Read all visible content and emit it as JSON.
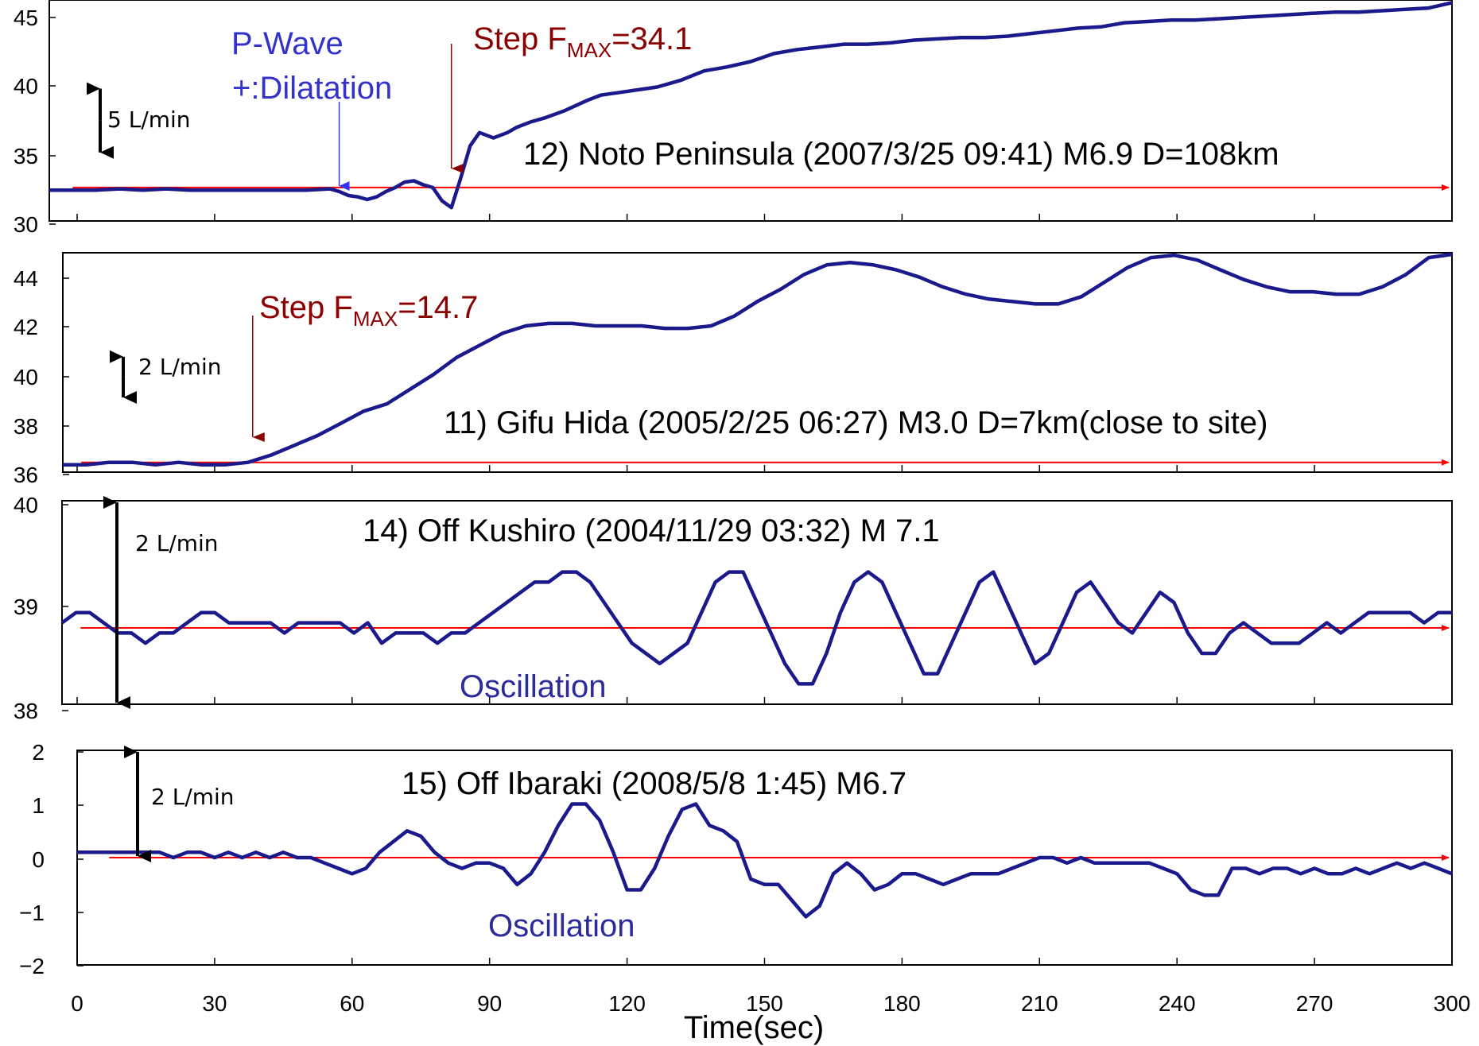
{
  "colors": {
    "trace": "#1a1a8c",
    "baseline": "#ff0000",
    "step": "#8b0000",
    "pwave": "#3333cc",
    "scale_arrow": "#000000",
    "oscillation": "#2b2b9c"
  },
  "x_axis": {
    "label": "Time(sec)",
    "ticks": [
      "0",
      "30",
      "60",
      "90",
      "120",
      "150",
      "180",
      "210",
      "240",
      "270",
      "300"
    ]
  },
  "chart_data": [
    {
      "type": "line",
      "title": "12) Noto Peninsula (2007/3/25 09:41) M6.9 D=108km",
      "y_ticks": [
        "30",
        "35",
        "40",
        "45"
      ],
      "ylim": [
        30,
        46.5
      ],
      "xlim": [
        0,
        300
      ],
      "baseline": 32.5,
      "scale_label": "5 L/min",
      "scale_range": [
        35,
        40
      ],
      "annotations": {
        "pwave_line1": "P-Wave",
        "pwave_line2": "+:Dilatation",
        "pwave_x": 62,
        "step_prefix": "Step F",
        "step_sub": "MAX",
        "step_value": "=34.1",
        "step_x": 86
      },
      "series": [
        {
          "x": [
            0,
            5,
            10,
            15,
            20,
            25,
            30,
            35,
            40,
            45,
            50,
            55,
            60,
            62,
            64,
            66,
            68,
            70,
            72,
            74,
            76,
            78,
            80,
            82,
            84,
            86,
            88,
            90,
            92,
            95,
            98,
            100,
            103,
            106,
            110,
            115,
            118,
            122,
            126,
            130,
            135,
            140,
            145,
            150,
            155,
            160,
            165,
            170,
            175,
            180,
            185,
            190,
            195,
            200,
            205,
            210,
            215,
            220,
            225,
            230,
            235,
            240,
            245,
            250,
            255,
            260,
            265,
            270,
            275,
            280,
            285,
            290,
            295,
            300
          ],
          "values": [
            32.3,
            32.3,
            32.3,
            32.4,
            32.3,
            32.4,
            32.3,
            32.3,
            32.3,
            32.3,
            32.3,
            32.3,
            32.4,
            32.2,
            31.9,
            31.8,
            31.6,
            31.8,
            32.2,
            32.5,
            32.9,
            33.0,
            32.7,
            32.5,
            31.5,
            31.0,
            33.2,
            35.6,
            36.6,
            36.2,
            36.6,
            37.0,
            37.4,
            37.7,
            38.2,
            39.0,
            39.4,
            39.6,
            39.8,
            40.0,
            40.5,
            41.2,
            41.5,
            41.9,
            42.5,
            42.8,
            43.0,
            43.2,
            43.2,
            43.3,
            43.5,
            43.6,
            43.7,
            43.7,
            43.8,
            44.0,
            44.2,
            44.4,
            44.5,
            44.8,
            44.9,
            45.0,
            45.0,
            45.1,
            45.2,
            45.3,
            45.4,
            45.5,
            45.6,
            45.6,
            45.7,
            45.8,
            45.9,
            46.3
          ]
        }
      ]
    },
    {
      "type": "line",
      "title": "11) Gifu Hida (2005/2/25 06:27) M3.0  D=7km(close to site)",
      "y_ticks": [
        "36",
        "38",
        "40",
        "42",
        "44"
      ],
      "ylim": [
        36,
        45
      ],
      "xlim": [
        0,
        300
      ],
      "baseline": 36.4,
      "scale_label": "2 L/min",
      "scale_range": [
        39.0,
        40.8
      ],
      "annotations": {
        "step_prefix": "Step F",
        "step_sub": "MAX",
        "step_value": "=14.7",
        "step_x": 41
      },
      "series": [
        {
          "x": [
            0,
            5,
            10,
            15,
            20,
            25,
            30,
            35,
            40,
            45,
            50,
            55,
            60,
            65,
            70,
            75,
            80,
            85,
            90,
            95,
            100,
            105,
            110,
            115,
            120,
            125,
            130,
            135,
            140,
            145,
            150,
            155,
            160,
            165,
            170,
            175,
            180,
            185,
            190,
            195,
            200,
            205,
            210,
            215,
            220,
            225,
            230,
            235,
            240,
            245,
            250,
            255,
            260,
            265,
            270,
            275,
            280,
            285,
            290,
            295,
            300
          ],
          "values": [
            36.3,
            36.3,
            36.4,
            36.4,
            36.3,
            36.4,
            36.3,
            36.3,
            36.4,
            36.7,
            37.1,
            37.5,
            38.0,
            38.5,
            38.8,
            39.4,
            40.0,
            40.7,
            41.2,
            41.7,
            42.0,
            42.1,
            42.1,
            42.0,
            42.0,
            42.0,
            41.9,
            41.9,
            42.0,
            42.4,
            43.0,
            43.5,
            44.1,
            44.5,
            44.6,
            44.5,
            44.3,
            44.0,
            43.6,
            43.3,
            43.1,
            43.0,
            42.9,
            42.9,
            43.2,
            43.8,
            44.4,
            44.8,
            44.9,
            44.7,
            44.3,
            43.9,
            43.6,
            43.4,
            43.4,
            43.3,
            43.3,
            43.6,
            44.1,
            44.8,
            45.2
          ]
        }
      ]
    },
    {
      "type": "line",
      "title": "14) Off Kushiro (2004/11/29 03:32) M 7.1",
      "y_ticks": [
        "38",
        "39",
        "40"
      ],
      "ylim": [
        38,
        40
      ],
      "xlim": [
        0,
        300
      ],
      "baseline": 38.75,
      "scale_label": "2 L/min",
      "scale_range": [
        38.0,
        40.0
      ],
      "annotations": {
        "oscillation": "Oscillation"
      },
      "series": [
        {
          "x": [
            0,
            3,
            6,
            9,
            12,
            15,
            18,
            21,
            24,
            27,
            30,
            33,
            36,
            39,
            42,
            45,
            48,
            51,
            54,
            57,
            60,
            63,
            66,
            69,
            72,
            75,
            78,
            81,
            84,
            87,
            90,
            93,
            96,
            99,
            102,
            105,
            108,
            111,
            114,
            117,
            120,
            123,
            126,
            129,
            132,
            135,
            138,
            141,
            144,
            147,
            150,
            153,
            156,
            159,
            162,
            165,
            168,
            171,
            174,
            177,
            180,
            183,
            186,
            189,
            192,
            195,
            198,
            201,
            204,
            207,
            210,
            213,
            216,
            219,
            222,
            225,
            228,
            231,
            234,
            237,
            240,
            243,
            246,
            249,
            252,
            255,
            258,
            261,
            264,
            267,
            270,
            273,
            276,
            279,
            282,
            285,
            288,
            291,
            294,
            297,
            300
          ],
          "values": [
            38.8,
            38.9,
            38.9,
            38.8,
            38.7,
            38.7,
            38.6,
            38.7,
            38.7,
            38.8,
            38.9,
            38.9,
            38.8,
            38.8,
            38.8,
            38.8,
            38.7,
            38.8,
            38.8,
            38.8,
            38.8,
            38.7,
            38.8,
            38.6,
            38.7,
            38.7,
            38.7,
            38.6,
            38.7,
            38.7,
            38.8,
            38.9,
            39.0,
            39.1,
            39.2,
            39.2,
            39.3,
            39.3,
            39.2,
            39.0,
            38.8,
            38.6,
            38.5,
            38.4,
            38.5,
            38.6,
            38.9,
            39.2,
            39.3,
            39.3,
            39.0,
            38.7,
            38.4,
            38.2,
            38.2,
            38.5,
            38.9,
            39.2,
            39.3,
            39.2,
            38.9,
            38.6,
            38.3,
            38.3,
            38.6,
            38.9,
            39.2,
            39.3,
            39.0,
            38.7,
            38.4,
            38.5,
            38.8,
            39.1,
            39.2,
            39.0,
            38.8,
            38.7,
            38.9,
            39.1,
            39.0,
            38.7,
            38.5,
            38.5,
            38.7,
            38.8,
            38.7,
            38.6,
            38.6,
            38.6,
            38.7,
            38.8,
            38.7,
            38.8,
            38.9,
            38.9,
            38.9,
            38.9,
            38.8,
            38.9,
            38.9
          ]
        }
      ]
    },
    {
      "type": "line",
      "title": "15) Off Ibaraki (2008/5/8 1:45) M6.7",
      "y_ticks": [
        "2",
        "1",
        "0",
        "−1",
        "−2"
      ],
      "ylim": [
        -2,
        2
      ],
      "xlim": [
        0,
        300
      ],
      "baseline": 0,
      "scale_label": "2 L/min",
      "scale_range": [
        0,
        2
      ],
      "annotations": {
        "oscillation": "Oscillation"
      },
      "series": [
        {
          "x": [
            0,
            3,
            6,
            9,
            12,
            15,
            18,
            21,
            24,
            27,
            30,
            33,
            36,
            39,
            42,
            45,
            48,
            51,
            54,
            57,
            60,
            63,
            66,
            69,
            72,
            75,
            78,
            81,
            84,
            87,
            90,
            93,
            96,
            99,
            102,
            105,
            108,
            111,
            114,
            117,
            120,
            123,
            126,
            129,
            132,
            135,
            138,
            141,
            144,
            147,
            150,
            153,
            156,
            159,
            162,
            165,
            168,
            171,
            174,
            177,
            180,
            183,
            186,
            189,
            192,
            195,
            198,
            201,
            204,
            207,
            210,
            213,
            216,
            219,
            222,
            225,
            228,
            231,
            234,
            237,
            240,
            243,
            246,
            249,
            252,
            255,
            258,
            261,
            264,
            267,
            270,
            273,
            276,
            279,
            282,
            285,
            288,
            291,
            294,
            297,
            300
          ],
          "values": [
            0.1,
            0.1,
            0.1,
            0.1,
            0.1,
            0.1,
            0.1,
            0.0,
            0.1,
            0.1,
            0.0,
            0.1,
            0.0,
            0.1,
            0.0,
            0.1,
            0.0,
            0.0,
            -0.1,
            -0.2,
            -0.3,
            -0.2,
            0.1,
            0.3,
            0.5,
            0.4,
            0.1,
            -0.1,
            -0.2,
            -0.1,
            -0.1,
            -0.2,
            -0.5,
            -0.3,
            0.1,
            0.6,
            1.0,
            1.0,
            0.7,
            0.1,
            -0.6,
            -0.6,
            -0.2,
            0.4,
            0.9,
            1.0,
            0.6,
            0.5,
            0.3,
            -0.4,
            -0.5,
            -0.5,
            -0.8,
            -1.1,
            -0.9,
            -0.3,
            -0.1,
            -0.3,
            -0.6,
            -0.5,
            -0.3,
            -0.3,
            -0.4,
            -0.5,
            -0.4,
            -0.3,
            -0.3,
            -0.3,
            -0.2,
            -0.1,
            0.0,
            0.0,
            -0.1,
            0.0,
            -0.1,
            -0.1,
            -0.1,
            -0.1,
            -0.1,
            -0.2,
            -0.3,
            -0.6,
            -0.7,
            -0.7,
            -0.2,
            -0.2,
            -0.3,
            -0.2,
            -0.2,
            -0.3,
            -0.2,
            -0.3,
            -0.3,
            -0.2,
            -0.3,
            -0.2,
            -0.1,
            -0.2,
            -0.1,
            -0.2,
            -0.3
          ]
        }
      ]
    }
  ]
}
